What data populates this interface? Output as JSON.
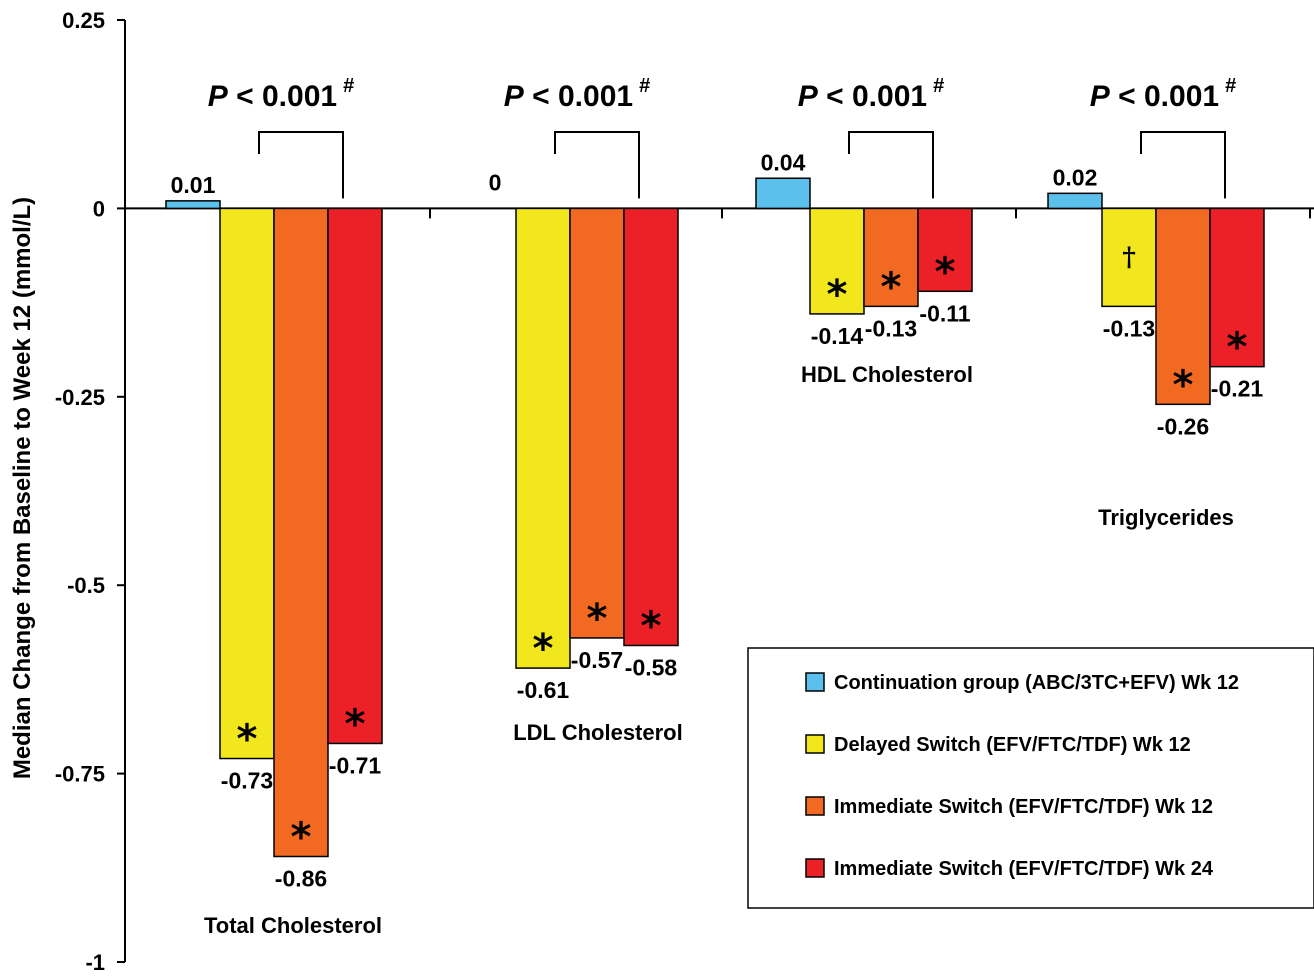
{
  "chart_data": {
    "type": "bar",
    "title": "",
    "ylabel": "Median Change from Baseline to Week 12 (mmol/L)",
    "ylim": [
      -1,
      0.25
    ],
    "yticks": [
      "0.25",
      "0",
      "-0.25",
      "-0.5",
      "-0.75",
      "-1"
    ],
    "ytick_values": [
      0.25,
      0,
      -0.25,
      -0.5,
      -0.75,
      -1
    ],
    "categories": [
      "Total Cholesterol",
      "LDL Cholesterol",
      "HDL Cholesterol",
      "Triglycerides"
    ],
    "series": [
      {
        "name": "Continuation group (ABC/3TC+EFV) Wk 12",
        "color": "#5bc0eb",
        "values": [
          0.01,
          0,
          0.04,
          0.02
        ],
        "labels": [
          "0.01",
          "0",
          "0.04",
          "0.02"
        ],
        "markers": [
          "",
          "",
          "",
          ""
        ]
      },
      {
        "name": "Delayed Switch (EFV/FTC/TDF) Wk 12",
        "color": "#f2e61c",
        "values": [
          -0.73,
          -0.61,
          -0.14,
          -0.13
        ],
        "labels": [
          "-0.73",
          "-0.61",
          "-0.14",
          "-0.13"
        ],
        "markers": [
          "*",
          "*",
          "*",
          "†"
        ]
      },
      {
        "name": "Immediate Switch (EFV/FTC/TDF) Wk 12",
        "color": "#f26a22",
        "values": [
          -0.86,
          -0.57,
          -0.13,
          -0.26
        ],
        "labels": [
          "-0.86",
          "-0.57",
          "-0.13",
          "-0.26"
        ],
        "markers": [
          "*",
          "*",
          "*",
          "*"
        ]
      },
      {
        "name": "Immediate Switch (EFV/FTC/TDF) Wk 24",
        "color": "#ec2127",
        "values": [
          -0.71,
          -0.58,
          -0.11,
          -0.21
        ],
        "labels": [
          "-0.71",
          "-0.58",
          "-0.11",
          "-0.21"
        ],
        "markers": [
          "*",
          "*",
          "*",
          "*"
        ]
      }
    ],
    "pvalues": [
      "P < 0.001 #",
      "P < 0.001 #",
      "P < 0.001 #",
      "P < 0.001 #"
    ],
    "grid": false,
    "legend_position": "bottom-right"
  },
  "pvalue_parts": {
    "p": "P",
    "rest": " < 0.001",
    "sup": "#"
  }
}
